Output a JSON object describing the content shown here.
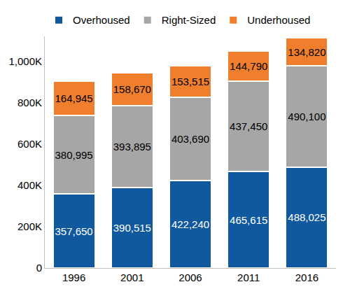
{
  "chart_data": {
    "type": "bar",
    "stacked": true,
    "categories": [
      "1996",
      "2001",
      "2006",
      "2011",
      "2016"
    ],
    "series": [
      {
        "name": "Overhoused",
        "color": "#11599e",
        "values": [
          357650,
          390515,
          422240,
          465615,
          488025
        ],
        "value_labels": [
          "357,650",
          "390,515",
          "422,240",
          "465,615",
          "488,025"
        ]
      },
      {
        "name": "Right-Sized",
        "color": "#a6a6a6",
        "values": [
          380995,
          393895,
          403690,
          437450,
          490100
        ],
        "value_labels": [
          "380,995",
          "393,895",
          "403,690",
          "437,450",
          "490,100"
        ]
      },
      {
        "name": "Underhoused",
        "color": "#f07f2d",
        "values": [
          164945,
          158670,
          153515,
          144790,
          134820
        ],
        "value_labels": [
          "164,945",
          "158,670",
          "153,515",
          "144,790",
          "134,820"
        ]
      }
    ],
    "ylim": [
      0,
      1120000
    ],
    "yticks": [
      0,
      {
        "value": 200000,
        "label": "200K"
      },
      {
        "value": 400000,
        "label": "400K"
      },
      {
        "value": 600000,
        "label": "600K"
      },
      {
        "value": 800000,
        "label": "800K"
      },
      {
        "value": 1000000,
        "label": "1,000K"
      }
    ],
    "grid": false,
    "legend": "top",
    "data_labels": true
  }
}
